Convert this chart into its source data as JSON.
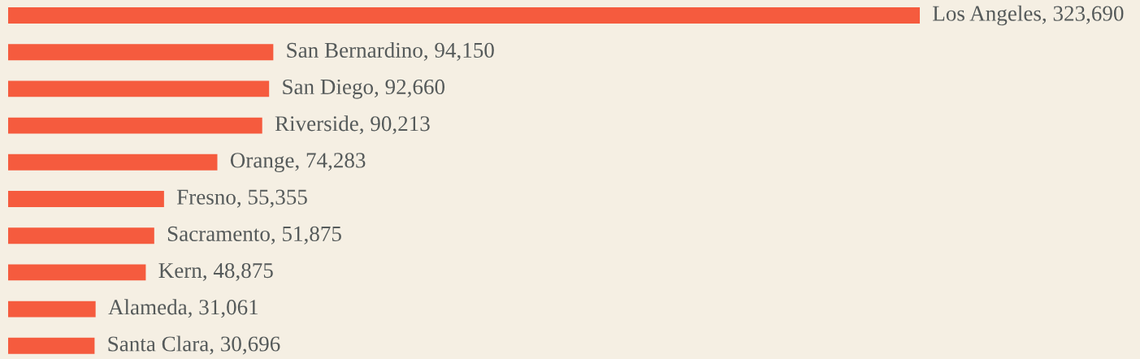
{
  "chart_data": {
    "type": "bar",
    "orientation": "horizontal",
    "categories": [
      null,
      null,
      null,
      null,
      null,
      null,
      null,
      null,
      null,
      null
    ],
    "values": [
      323690,
      94150,
      92660,
      90213,
      74283,
      55355,
      51875,
      48875,
      31061,
      30696
    ],
    "value_labels": [
      "Los Angeles, 323,690",
      "San Bernardino, 94,150",
      "San Diego, 92,660",
      "Riverside, 90,213",
      "Orange, 74,283",
      "Fresno, 55,355",
      "Sacramento, 51,875",
      "Kern, 48,875",
      "Alameda, 31,061",
      "Santa Clara, 30,696"
    ],
    "color": "#f55b3e",
    "tick_labels": false
  }
}
